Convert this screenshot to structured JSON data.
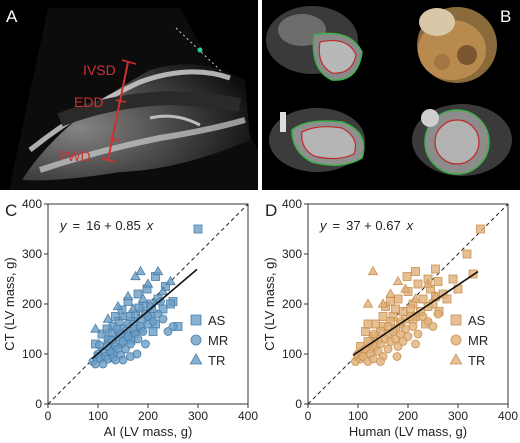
{
  "panel_labels": {
    "a": "A",
    "b": "B",
    "c": "C",
    "d": "D"
  },
  "echo": {
    "labels": [
      "IVSD",
      "EDD",
      "PWD"
    ]
  },
  "colors": {
    "blue": "#6a9ec6",
    "blue_edge": "#4d7fa8",
    "orange": "#e0b078",
    "orange_edge": "#c89254",
    "echo_red": "#d03030",
    "contour_green": "#3db04a",
    "contour_red": "#c02a2a"
  },
  "chart_data": [
    {
      "type": "scatter",
      "panel": "C",
      "equation": {
        "y": "y",
        "eq": "=",
        "a": "16 + 0.85",
        "x": "x"
      },
      "fit": {
        "intercept": 16,
        "slope": 0.85,
        "x_range": [
          88,
          298
        ]
      },
      "xlabel": "AI (LV mass, g)",
      "ylabel": "CT (LV mass, g)",
      "xlim": [
        0,
        400
      ],
      "ylim": [
        0,
        400
      ],
      "ticks": [
        0,
        100,
        200,
        300,
        400
      ],
      "identity_line": true,
      "legend": [
        "AS",
        "MR",
        "TR"
      ],
      "color": "#6a9ec6",
      "series": [
        {
          "name": "AS",
          "marker": "square",
          "points": [
            [
              300,
              350
            ],
            [
              250,
              205
            ],
            [
              235,
              235
            ],
            [
              220,
              210
            ],
            [
              195,
              180
            ],
            [
              185,
              150
            ],
            [
              200,
              160
            ],
            [
              245,
              200
            ],
            [
              180,
              220
            ],
            [
              170,
              165
            ],
            [
              165,
              175
            ],
            [
              160,
              205
            ],
            [
              155,
              140
            ],
            [
              140,
              135
            ],
            [
              150,
              150
            ],
            [
              130,
              155
            ],
            [
              125,
              110
            ],
            [
              120,
              130
            ],
            [
              110,
              105
            ],
            [
              100,
              95
            ],
            [
              95,
              120
            ],
            [
              108,
              140
            ],
            [
              135,
              175
            ],
            [
              175,
              180
            ],
            [
              190,
              195
            ],
            [
              205,
              175
            ],
            [
              215,
              160
            ],
            [
              210,
              145
            ],
            [
              230,
              190
            ],
            [
              260,
              155
            ],
            [
              145,
              120
            ],
            [
              160,
              130
            ],
            [
              130,
              100
            ],
            [
              118,
              150
            ],
            [
              172,
              145
            ],
            [
              188,
              170
            ],
            [
              142,
              165
            ],
            [
              128,
              142
            ],
            [
              166,
              128
            ],
            [
              182,
              192
            ],
            [
              207,
              200
            ],
            [
              122,
              120
            ],
            [
              148,
              188
            ],
            [
              198,
              230
            ],
            [
              215,
              255
            ]
          ]
        },
        {
          "name": "MR",
          "marker": "circle",
          "points": [
            [
              90,
              85
            ],
            [
              95,
              80
            ],
            [
              100,
              100
            ],
            [
              105,
              90
            ],
            [
              115,
              95
            ],
            [
              120,
              90
            ],
            [
              110,
              80
            ],
            [
              125,
              105
            ],
            [
              130,
              92
            ],
            [
              135,
              115
            ],
            [
              140,
              110
            ],
            [
              145,
              98
            ],
            [
              150,
              125
            ],
            [
              155,
              110
            ],
            [
              160,
              135
            ],
            [
              165,
              120
            ],
            [
              170,
              150
            ],
            [
              175,
              140
            ],
            [
              180,
              130
            ],
            [
              185,
              155
            ],
            [
              190,
              145
            ],
            [
              200,
              175
            ],
            [
              210,
              165
            ],
            [
              220,
              180
            ],
            [
              230,
              170
            ],
            [
              240,
              145
            ],
            [
              250,
              155
            ],
            [
              195,
              120
            ],
            [
              150,
              88
            ],
            [
              128,
              128
            ],
            [
              138,
              150
            ],
            [
              118,
              115
            ],
            [
              103,
              118
            ],
            [
              165,
              95
            ],
            [
              178,
              100
            ],
            [
              205,
              195
            ],
            [
              225,
              205
            ],
            [
              160,
              160
            ],
            [
              145,
              140
            ],
            [
              135,
              88
            ]
          ]
        },
        {
          "name": "TR",
          "marker": "triangle",
          "points": [
            [
              185,
              265
            ],
            [
              175,
              255
            ],
            [
              220,
              265
            ],
            [
              200,
              240
            ],
            [
              160,
              215
            ],
            [
              230,
              225
            ],
            [
              245,
              245
            ],
            [
              140,
              195
            ],
            [
              120,
              170
            ],
            [
              95,
              150
            ],
            [
              150,
              175
            ],
            [
              190,
              210
            ],
            [
              170,
              190
            ],
            [
              210,
              190
            ]
          ]
        }
      ]
    },
    {
      "type": "scatter",
      "panel": "D",
      "equation": {
        "y": "y",
        "eq": "=",
        "a": "37 + 0.67",
        "x": "x"
      },
      "fit": {
        "intercept": 37,
        "slope": 0.67,
        "x_range": [
          90,
          340
        ]
      },
      "xlabel": "Human (LV mass, g)",
      "ylabel": "CT (LV mass, g)",
      "xlim": [
        0,
        400
      ],
      "ylim": [
        0,
        400
      ],
      "ticks": [
        0,
        100,
        200,
        300,
        400
      ],
      "identity_line": true,
      "legend": [
        "AS",
        "MR",
        "TR"
      ],
      "color": "#e0b078",
      "series": [
        {
          "name": "AS",
          "marker": "square",
          "points": [
            [
              345,
              350
            ],
            [
              330,
              260
            ],
            [
              300,
              230
            ],
            [
              290,
              250
            ],
            [
              270,
              220
            ],
            [
              260,
              245
            ],
            [
              255,
              215
            ],
            [
              250,
              200
            ],
            [
              240,
              195
            ],
            [
              230,
              210
            ],
            [
              225,
              185
            ],
            [
              220,
              240
            ],
            [
              215,
              175
            ],
            [
              210,
              200
            ],
            [
              205,
              190
            ],
            [
              200,
              225
            ],
            [
              195,
              170
            ],
            [
              190,
              185
            ],
            [
              185,
              160
            ],
            [
              180,
              210
            ],
            [
              175,
              150
            ],
            [
              170,
              175
            ],
            [
              165,
              165
            ],
            [
              160,
              140
            ],
            [
              155,
              195
            ],
            [
              150,
              155
            ],
            [
              145,
              145
            ],
            [
              140,
              130
            ],
            [
              135,
              160
            ],
            [
              130,
              135
            ],
            [
              125,
              120
            ],
            [
              120,
              125
            ],
            [
              115,
              145
            ],
            [
              110,
              105
            ],
            [
              105,
              115
            ],
            [
              100,
              95
            ],
            [
              235,
              160
            ],
            [
              245,
              230
            ],
            [
              255,
              270
            ],
            [
              215,
              265
            ],
            [
              198,
              255
            ],
            [
              278,
              210
            ],
            [
              262,
              185
            ],
            [
              210,
              170
            ],
            [
              175,
              190
            ],
            [
              165,
              205
            ],
            [
              150,
              175
            ],
            [
              128,
              110
            ],
            [
              318,
              300
            ],
            [
              240,
              250
            ],
            [
              120,
              160
            ]
          ]
        },
        {
          "name": "MR",
          "marker": "circle",
          "points": [
            [
              95,
              85
            ],
            [
              100,
              100
            ],
            [
              105,
              90
            ],
            [
              110,
              95
            ],
            [
              115,
              110
            ],
            [
              120,
              85
            ],
            [
              125,
              100
            ],
            [
              130,
              90
            ],
            [
              135,
              115
            ],
            [
              140,
              105
            ],
            [
              145,
              120
            ],
            [
              150,
              95
            ],
            [
              155,
              130
            ],
            [
              160,
              110
            ],
            [
              165,
              125
            ],
            [
              170,
              145
            ],
            [
              175,
              130
            ],
            [
              180,
              115
            ],
            [
              185,
              140
            ],
            [
              190,
              125
            ],
            [
              195,
              150
            ],
            [
              200,
              135
            ],
            [
              210,
              155
            ],
            [
              220,
              140
            ],
            [
              230,
              175
            ],
            [
              240,
              165
            ],
            [
              250,
              155
            ],
            [
              205,
              175
            ],
            [
              185,
              165
            ],
            [
              160,
              155
            ],
            [
              145,
              85
            ],
            [
              178,
              95
            ],
            [
              132,
              140
            ],
            [
              260,
              180
            ],
            [
              215,
              120
            ]
          ]
        },
        {
          "name": "TR",
          "marker": "triangle",
          "points": [
            [
              130,
              265
            ],
            [
              180,
              245
            ],
            [
              215,
              210
            ],
            [
              240,
              240
            ],
            [
              165,
              220
            ],
            [
              195,
              230
            ],
            [
              150,
              200
            ],
            [
              255,
              215
            ],
            [
              120,
              200
            ]
          ]
        }
      ]
    }
  ]
}
